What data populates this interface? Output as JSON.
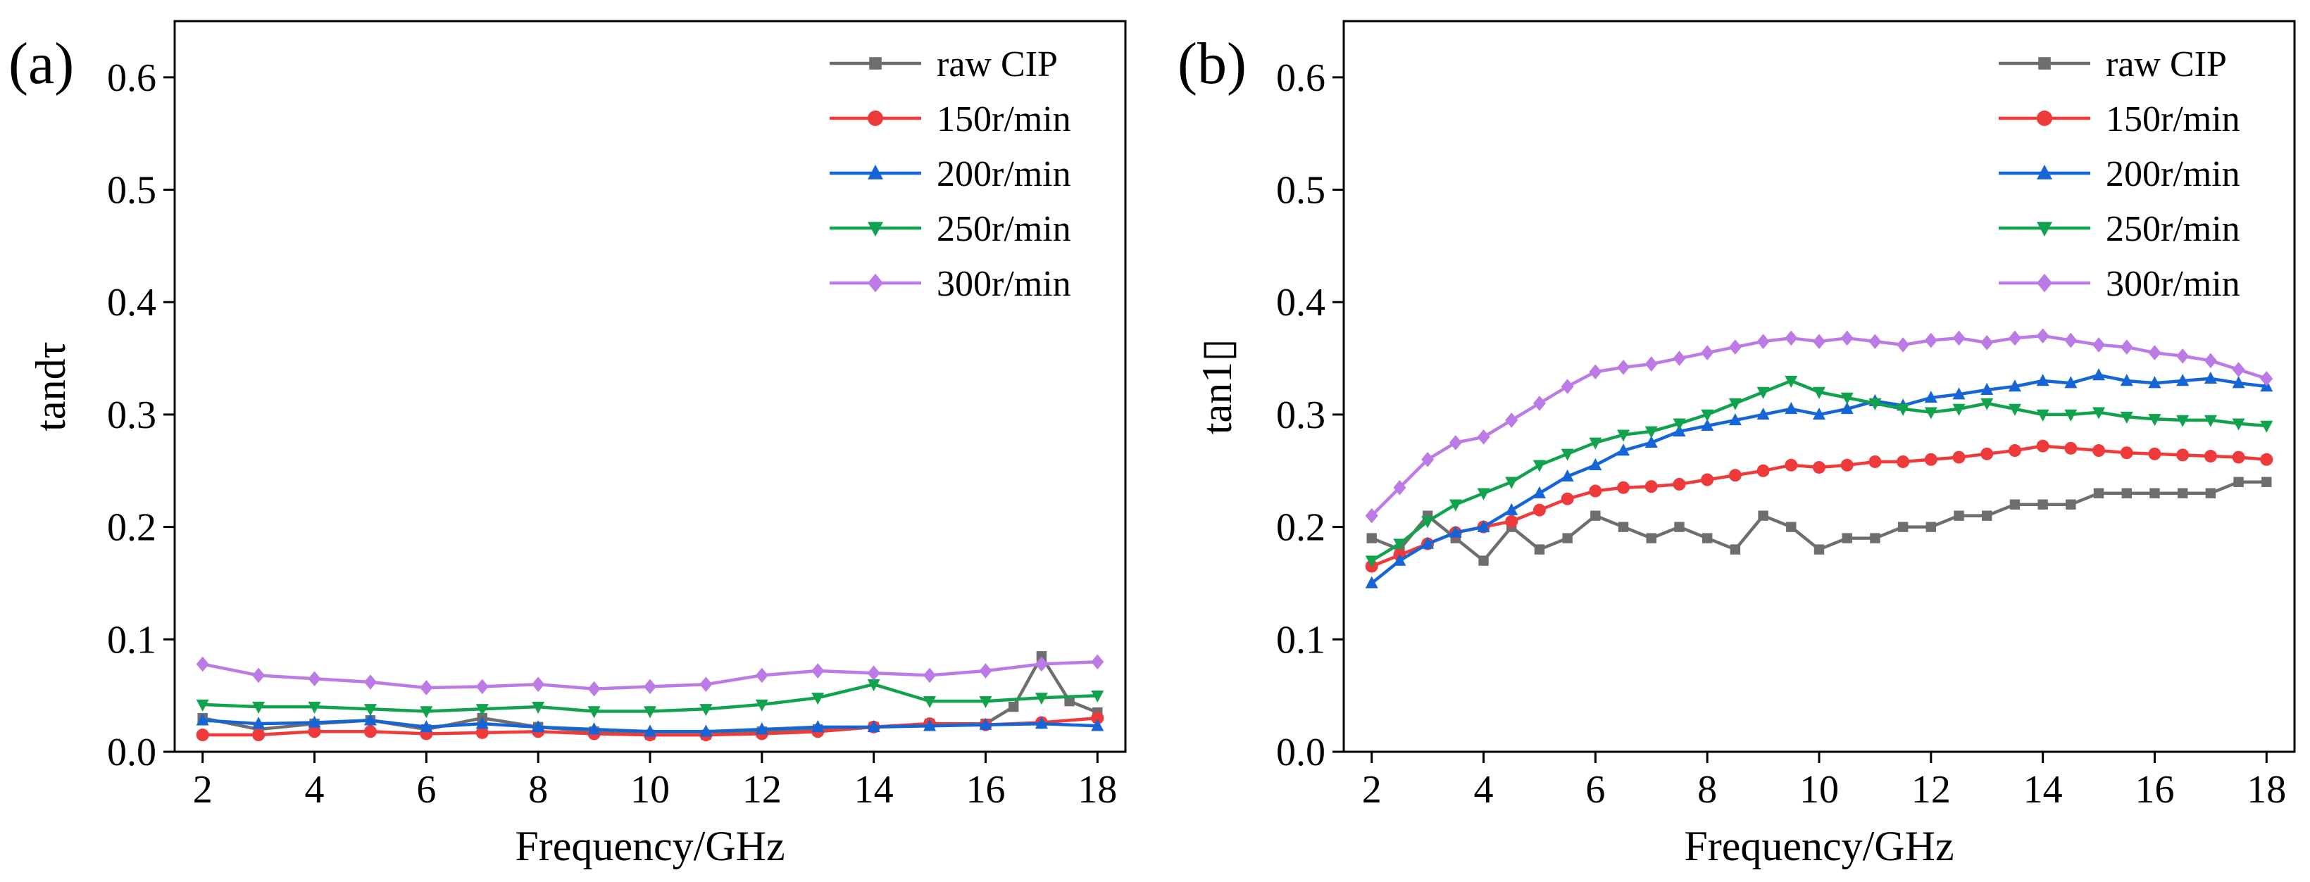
{
  "colors": {
    "raw": "#6e6e6e",
    "r150": "#ee3a3a",
    "r200": "#1565d6",
    "r250": "#11a24e",
    "r300": "#bb7ae6"
  },
  "chart_data": [
    {
      "type": "line",
      "panel_label": "(a)",
      "xlabel": "Frequency/GHz",
      "ylabel": "tandτ",
      "xlim": [
        1.5,
        18.5
      ],
      "ylim": [
        0.0,
        0.65
      ],
      "xticks": [
        "2",
        "4",
        "6",
        "8",
        "10",
        "12",
        "14",
        "16",
        "18"
      ],
      "yticks": [
        "0.0",
        "0.1",
        "0.2",
        "0.3",
        "0.4",
        "0.5",
        "0.6"
      ],
      "legend_position": "top-right",
      "series": [
        {
          "name": "raw CIP",
          "color": "#6e6e6e",
          "marker": "square",
          "x": [
            2,
            3,
            4,
            5,
            6,
            7,
            8,
            9,
            10,
            11,
            12,
            13,
            14,
            15,
            16,
            16.5,
            17,
            17.5,
            18
          ],
          "y": [
            0.03,
            0.02,
            0.025,
            0.028,
            0.02,
            0.03,
            0.022,
            0.018,
            0.015,
            0.015,
            0.018,
            0.02,
            0.022,
            0.025,
            0.025,
            0.04,
            0.085,
            0.045,
            0.035
          ]
        },
        {
          "name": "150r/min",
          "color": "#ee3a3a",
          "marker": "circle",
          "x": [
            2,
            3,
            4,
            5,
            6,
            7,
            8,
            9,
            10,
            11,
            12,
            13,
            14,
            15,
            16,
            17,
            18
          ],
          "y": [
            0.015,
            0.015,
            0.018,
            0.018,
            0.016,
            0.017,
            0.018,
            0.016,
            0.015,
            0.015,
            0.016,
            0.018,
            0.022,
            0.025,
            0.024,
            0.026,
            0.03
          ]
        },
        {
          "name": "200r/min",
          "color": "#1565d6",
          "marker": "triangle-up",
          "x": [
            2,
            3,
            4,
            5,
            6,
            7,
            8,
            9,
            10,
            11,
            12,
            13,
            14,
            15,
            16,
            17,
            18
          ],
          "y": [
            0.028,
            0.025,
            0.026,
            0.028,
            0.022,
            0.025,
            0.022,
            0.02,
            0.018,
            0.018,
            0.02,
            0.022,
            0.022,
            0.023,
            0.024,
            0.025,
            0.023
          ]
        },
        {
          "name": "250r/min",
          "color": "#11a24e",
          "marker": "triangle-down",
          "x": [
            2,
            3,
            4,
            5,
            6,
            7,
            8,
            9,
            10,
            11,
            12,
            13,
            14,
            15,
            16,
            17,
            18
          ],
          "y": [
            0.042,
            0.04,
            0.04,
            0.038,
            0.036,
            0.038,
            0.04,
            0.036,
            0.036,
            0.038,
            0.042,
            0.048,
            0.06,
            0.045,
            0.045,
            0.048,
            0.05
          ]
        },
        {
          "name": "300r/min",
          "color": "#bb7ae6",
          "marker": "diamond",
          "x": [
            2,
            3,
            4,
            5,
            6,
            7,
            8,
            9,
            10,
            11,
            12,
            13,
            14,
            15,
            16,
            17,
            18
          ],
          "y": [
            0.078,
            0.068,
            0.065,
            0.062,
            0.057,
            0.058,
            0.06,
            0.056,
            0.058,
            0.06,
            0.068,
            0.072,
            0.07,
            0.068,
            0.072,
            0.078,
            0.08
          ]
        }
      ]
    },
    {
      "type": "line",
      "panel_label": "(b)",
      "xlabel": "Frequency/GHz",
      "ylabel": "tan1▯",
      "xlim": [
        1.5,
        18.5
      ],
      "ylim": [
        0.0,
        0.65
      ],
      "xticks": [
        "2",
        "4",
        "6",
        "8",
        "10",
        "12",
        "14",
        "16",
        "18"
      ],
      "yticks": [
        "0.0",
        "0.1",
        "0.2",
        "0.3",
        "0.4",
        "0.5",
        "0.6"
      ],
      "legend_position": "top-right",
      "series": [
        {
          "name": "raw CIP",
          "color": "#6e6e6e",
          "marker": "square",
          "x": [
            2,
            2.5,
            3,
            3.5,
            4,
            4.5,
            5,
            5.5,
            6,
            6.5,
            7,
            7.5,
            8,
            8.5,
            9,
            9.5,
            10,
            10.5,
            11,
            11.5,
            12,
            12.5,
            13,
            13.5,
            14,
            14.5,
            15,
            15.5,
            16,
            16.5,
            17,
            17.5,
            18
          ],
          "y": [
            0.19,
            0.18,
            0.21,
            0.19,
            0.17,
            0.2,
            0.18,
            0.19,
            0.21,
            0.2,
            0.19,
            0.2,
            0.19,
            0.18,
            0.21,
            0.2,
            0.18,
            0.19,
            0.19,
            0.2,
            0.2,
            0.21,
            0.21,
            0.22,
            0.22,
            0.22,
            0.23,
            0.23,
            0.23,
            0.23,
            0.23,
            0.24,
            0.24
          ]
        },
        {
          "name": "150r/min",
          "color": "#ee3a3a",
          "marker": "circle",
          "x": [
            2,
            2.5,
            3,
            3.5,
            4,
            4.5,
            5,
            5.5,
            6,
            6.5,
            7,
            7.5,
            8,
            8.5,
            9,
            9.5,
            10,
            10.5,
            11,
            11.5,
            12,
            12.5,
            13,
            13.5,
            14,
            14.5,
            15,
            15.5,
            16,
            16.5,
            17,
            17.5,
            18
          ],
          "y": [
            0.165,
            0.175,
            0.185,
            0.195,
            0.2,
            0.205,
            0.215,
            0.225,
            0.232,
            0.235,
            0.236,
            0.238,
            0.242,
            0.246,
            0.25,
            0.255,
            0.253,
            0.255,
            0.258,
            0.258,
            0.26,
            0.262,
            0.265,
            0.268,
            0.272,
            0.27,
            0.268,
            0.266,
            0.265,
            0.264,
            0.263,
            0.262,
            0.26
          ]
        },
        {
          "name": "200r/min",
          "color": "#1565d6",
          "marker": "triangle-up",
          "x": [
            2,
            2.5,
            3,
            3.5,
            4,
            4.5,
            5,
            5.5,
            6,
            6.5,
            7,
            7.5,
            8,
            8.5,
            9,
            9.5,
            10,
            10.5,
            11,
            11.5,
            12,
            12.5,
            13,
            13.5,
            14,
            14.5,
            15,
            15.5,
            16,
            16.5,
            17,
            17.5,
            18
          ],
          "y": [
            0.15,
            0.17,
            0.185,
            0.195,
            0.2,
            0.215,
            0.23,
            0.245,
            0.255,
            0.268,
            0.275,
            0.285,
            0.29,
            0.295,
            0.3,
            0.305,
            0.3,
            0.305,
            0.312,
            0.308,
            0.315,
            0.318,
            0.322,
            0.325,
            0.33,
            0.328,
            0.335,
            0.33,
            0.328,
            0.33,
            0.332,
            0.328,
            0.325
          ]
        },
        {
          "name": "250r/min",
          "color": "#11a24e",
          "marker": "triangle-down",
          "x": [
            2,
            2.5,
            3,
            3.5,
            4,
            4.5,
            5,
            5.5,
            6,
            6.5,
            7,
            7.5,
            8,
            8.5,
            9,
            9.5,
            10,
            10.5,
            11,
            11.5,
            12,
            12.5,
            13,
            13.5,
            14,
            14.5,
            15,
            15.5,
            16,
            16.5,
            17,
            17.5,
            18
          ],
          "y": [
            0.17,
            0.185,
            0.205,
            0.22,
            0.23,
            0.24,
            0.255,
            0.265,
            0.275,
            0.282,
            0.285,
            0.292,
            0.3,
            0.31,
            0.32,
            0.33,
            0.32,
            0.315,
            0.31,
            0.305,
            0.302,
            0.305,
            0.31,
            0.305,
            0.3,
            0.3,
            0.302,
            0.298,
            0.296,
            0.295,
            0.295,
            0.292,
            0.29
          ]
        },
        {
          "name": "300r/min",
          "color": "#bb7ae6",
          "marker": "diamond",
          "x": [
            2,
            2.5,
            3,
            3.5,
            4,
            4.5,
            5,
            5.5,
            6,
            6.5,
            7,
            7.5,
            8,
            8.5,
            9,
            9.5,
            10,
            10.5,
            11,
            11.5,
            12,
            12.5,
            13,
            13.5,
            14,
            14.5,
            15,
            15.5,
            16,
            16.5,
            17,
            17.5,
            18
          ],
          "y": [
            0.21,
            0.235,
            0.26,
            0.275,
            0.28,
            0.295,
            0.31,
            0.325,
            0.338,
            0.342,
            0.345,
            0.35,
            0.355,
            0.36,
            0.365,
            0.368,
            0.365,
            0.368,
            0.365,
            0.362,
            0.366,
            0.368,
            0.364,
            0.368,
            0.37,
            0.366,
            0.362,
            0.36,
            0.355,
            0.352,
            0.348,
            0.34,
            0.332
          ]
        }
      ]
    }
  ]
}
